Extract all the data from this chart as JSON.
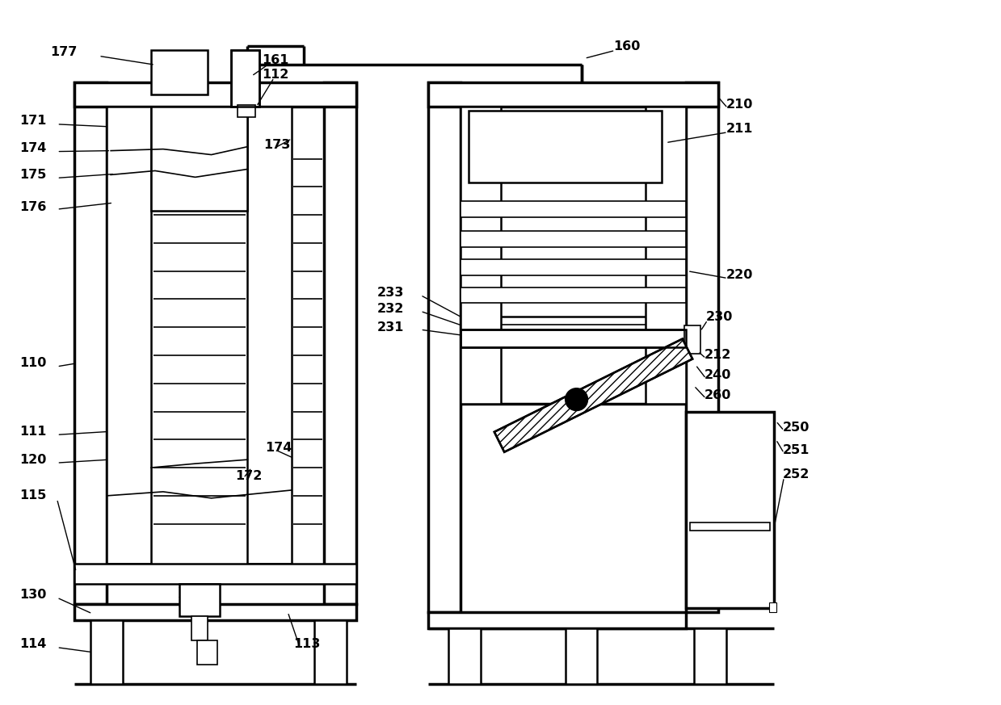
{
  "bg_color": "#ffffff",
  "line_color": "#000000",
  "fig_w": 12.39,
  "fig_h": 8.73,
  "dpi": 100
}
